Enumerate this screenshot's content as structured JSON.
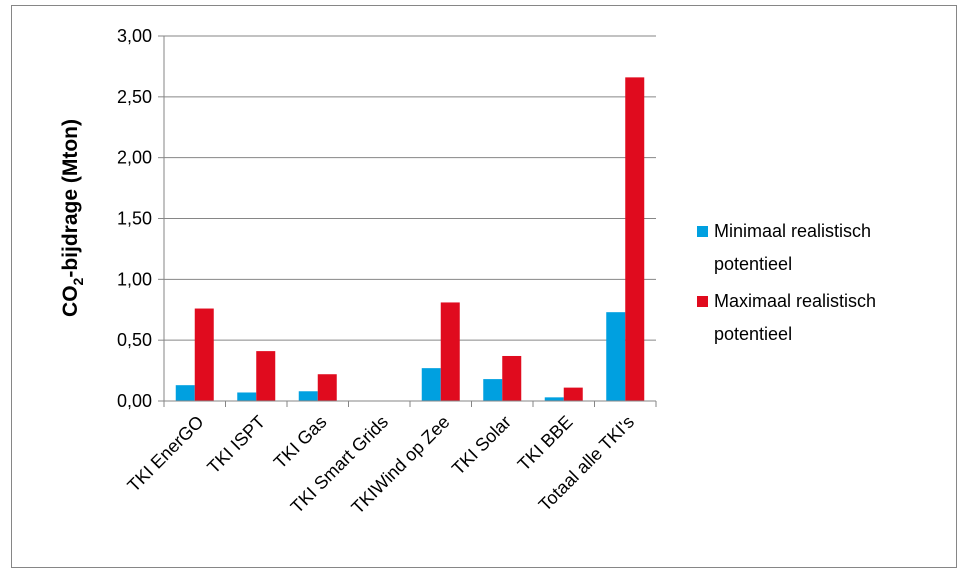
{
  "chart_data": {
    "type": "bar",
    "categories": [
      "TKI EnerGO",
      "TKI ISPT",
      "TKI Gas",
      "TKI Smart Grids",
      "TKIWind op Zee",
      "TKI Solar",
      "TKI BBE",
      "Totaal alle TKI's"
    ],
    "series": [
      {
        "name": "Minimaal realistisch potentieel",
        "lines": [
          "Minimaal realistisch",
          "potentieel"
        ],
        "color": "#00A0E0",
        "values": [
          0.13,
          0.07,
          0.08,
          0.0,
          0.27,
          0.18,
          0.03,
          0.73
        ]
      },
      {
        "name": "Maximaal realistisch potentieel",
        "lines": [
          "Maximaal realistisch",
          "potentieel"
        ],
        "color": "#E00B1E",
        "values": [
          0.76,
          0.41,
          0.22,
          0.0,
          0.81,
          0.37,
          0.11,
          2.66
        ]
      }
    ],
    "ylabel_main": "CO",
    "ylabel_sub": "2",
    "ylabel_rest": "-bijdrage (Mton)",
    "ylim": [
      0,
      3
    ],
    "yticks": [
      "0,00",
      "0,50",
      "1,00",
      "1,50",
      "2,00",
      "2,50",
      "3,00"
    ],
    "ytick_values": [
      0,
      0.5,
      1.0,
      1.5,
      2.0,
      2.5,
      3.0
    ],
    "grid": "horizontal",
    "legend_position": "right"
  }
}
